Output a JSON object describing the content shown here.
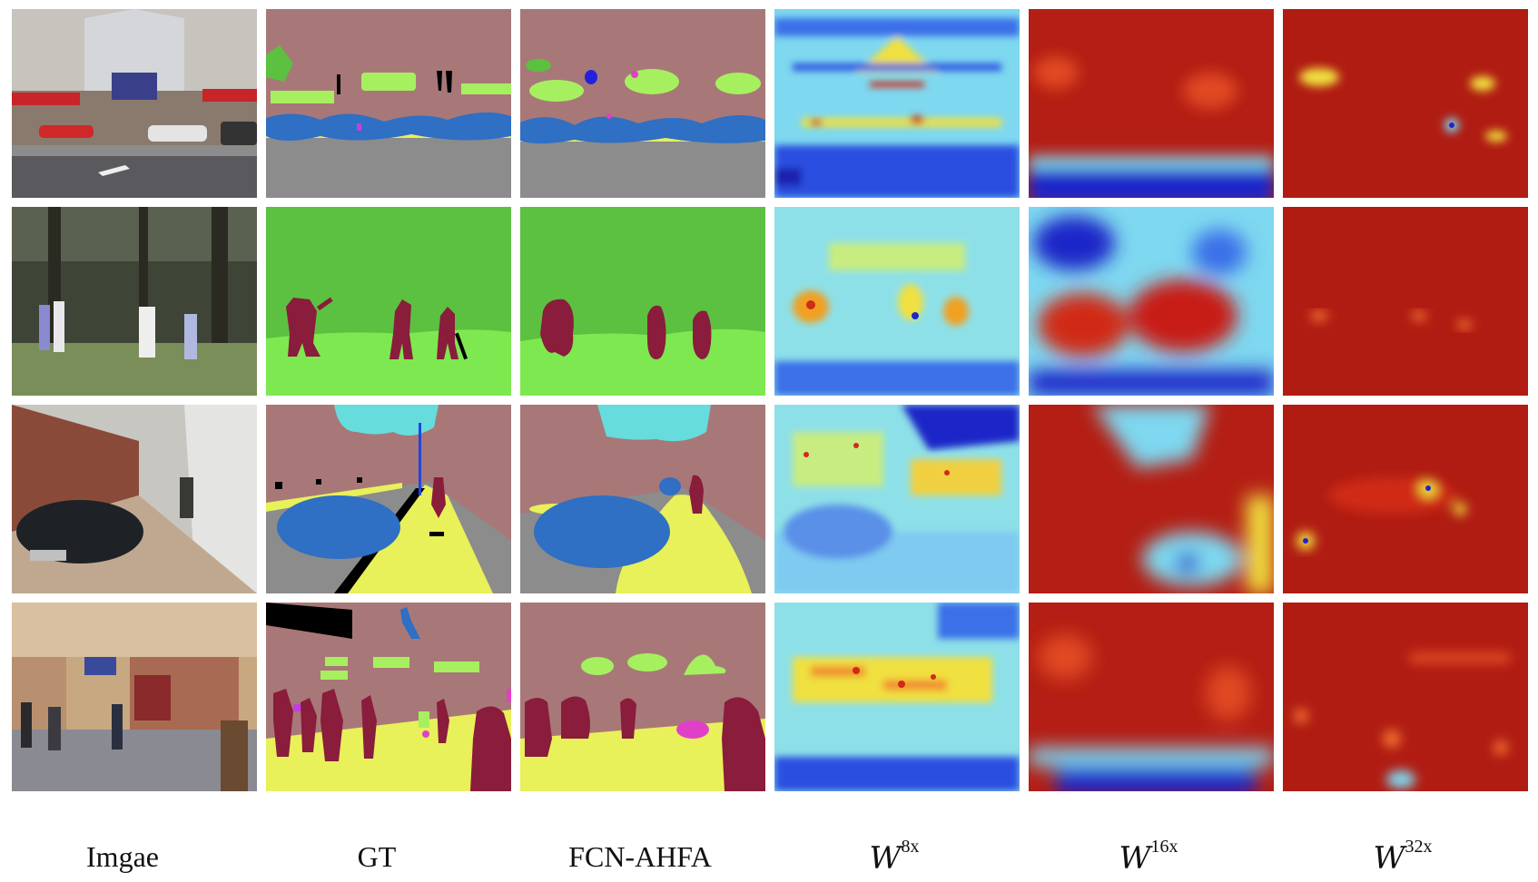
{
  "figure": {
    "columns": [
      {
        "label": "Imgae",
        "kind": "photo"
      },
      {
        "label": "GT",
        "kind": "segmentation"
      },
      {
        "label": "FCN-AHFA",
        "kind": "segmentation"
      },
      {
        "label": "W",
        "sup": "8x",
        "kind": "heatmap"
      },
      {
        "label": "W",
        "sup": "16x",
        "kind": "heatmap"
      },
      {
        "label": "W",
        "sup": "32x",
        "kind": "heatmap"
      }
    ],
    "rows": [
      {
        "scene": "street-storefront"
      },
      {
        "scene": "park-people"
      },
      {
        "scene": "street-car"
      },
      {
        "scene": "shopping-street"
      }
    ],
    "palette": {
      "building": "#a87878",
      "road": "#8c8c8c",
      "car": "#2f6fc4",
      "sign": "#a6f060",
      "tree": "#5cc040",
      "grass": "#7ee850",
      "person": "#8a1c3c",
      "sidewalk": "#e8f05a",
      "sky": "#66dcdc",
      "pole": "#2244dd",
      "void": "#000000",
      "magenta": "#e040c8",
      "heat_red": "#b41e14",
      "heat_blue": "#1e28c8",
      "heat_cyan": "#7ed8f0",
      "heat_yellow": "#f0e040"
    }
  }
}
